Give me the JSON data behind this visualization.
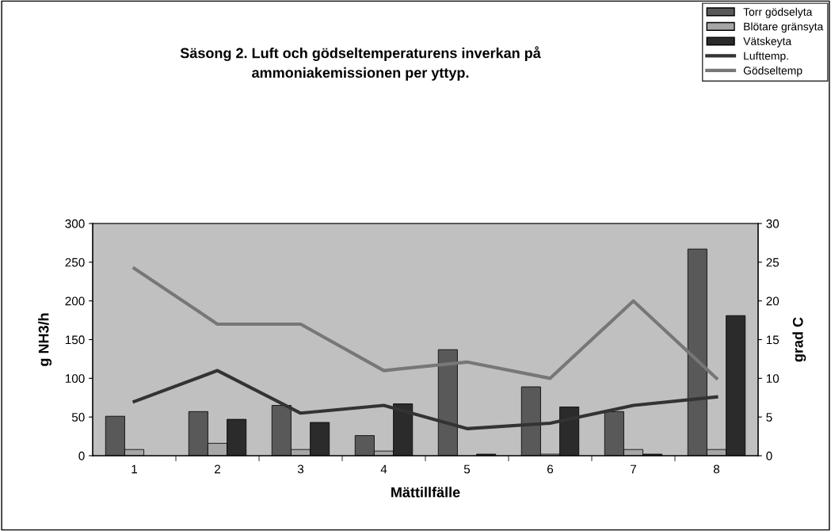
{
  "chart_data": {
    "type": "bar",
    "title": "Säsong 2. Luft och gödseltemperaturens inverkan på\nammoniakemissionen per yttyp.",
    "xlabel": "Mättillfälle",
    "ylabel": "g NH3/h",
    "y2label": "grad C",
    "categories": [
      "1",
      "2",
      "3",
      "4",
      "5",
      "6",
      "7",
      "8"
    ],
    "series": [
      {
        "name": "Torr gödselyta",
        "color": "#595959",
        "values": [
          51,
          57,
          65,
          26,
          137,
          89,
          57,
          267
        ]
      },
      {
        "name": "Blötare gränsyta",
        "color": "#a6a6a6",
        "values": [
          8,
          16,
          8,
          6,
          null,
          2,
          8,
          8
        ]
      },
      {
        "name": "Vätskeyta",
        "color": "#2b2b2b",
        "values": [
          null,
          47,
          43,
          67,
          2,
          63,
          2,
          181
        ]
      },
      {
        "name": "Lufttemp.",
        "type": "line",
        "axis": "y2",
        "color": "#333333",
        "values": [
          7,
          11,
          5.5,
          6.5,
          3.5,
          4.2,
          6.5,
          7.6
        ]
      },
      {
        "name": "Gödseltemp",
        "type": "line",
        "axis": "y2",
        "color": "#777777",
        "values": [
          24.2,
          17,
          17,
          11,
          12.1,
          10,
          20,
          10
        ]
      }
    ],
    "ylim": [
      0,
      300
    ],
    "yticks": [
      0,
      50,
      100,
      150,
      200,
      250,
      300
    ],
    "y2lim": [
      0,
      30
    ],
    "y2ticks": [
      0,
      5,
      10,
      15,
      20,
      25,
      30
    ],
    "grid": false,
    "legend": "top right"
  }
}
